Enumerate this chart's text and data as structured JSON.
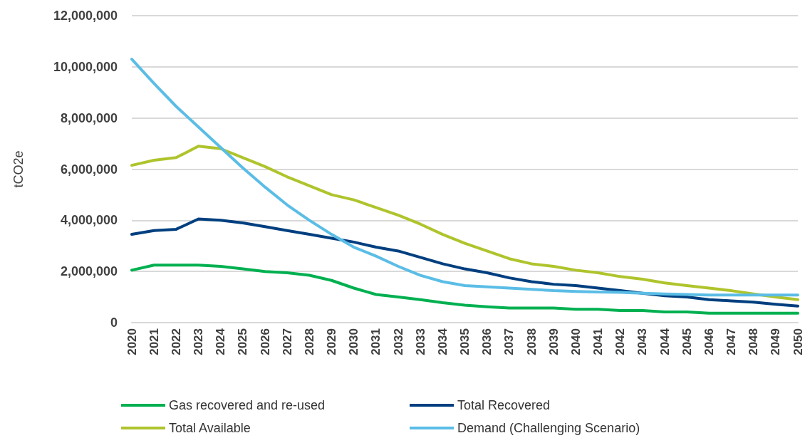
{
  "chart_data": {
    "type": "line",
    "ylabel": "tCO2e",
    "x": [
      2020,
      2021,
      2022,
      2023,
      2024,
      2025,
      2026,
      2027,
      2028,
      2029,
      2030,
      2031,
      2032,
      2033,
      2034,
      2035,
      2036,
      2037,
      2038,
      2039,
      2040,
      2041,
      2042,
      2043,
      2044,
      2045,
      2046,
      2047,
      2048,
      2049,
      2050
    ],
    "xlim": [
      2020,
      2050
    ],
    "xticks": [
      2020,
      2021,
      2022,
      2023,
      2024,
      2025,
      2026,
      2027,
      2028,
      2029,
      2030,
      2031,
      2032,
      2033,
      2034,
      2035,
      2036,
      2037,
      2038,
      2039,
      2040,
      2041,
      2042,
      2043,
      2044,
      2045,
      2046,
      2047,
      2048,
      2049,
      2050
    ],
    "ylim": [
      0,
      12000000
    ],
    "yticks": [
      {
        "value": 0,
        "label": "0"
      },
      {
        "value": 2000000,
        "label": "2,000,000"
      },
      {
        "value": 4000000,
        "label": "4,000,000"
      },
      {
        "value": 6000000,
        "label": "6,000,000"
      },
      {
        "value": 8000000,
        "label": "8,000,000"
      },
      {
        "value": 10000000,
        "label": "10,000,000"
      },
      {
        "value": 12000000,
        "label": "12,000,000"
      }
    ],
    "grid": "y",
    "legend": "bottom",
    "marker": "none",
    "line_style": "solid",
    "series": [
      {
        "name": "Gas recovered and re-used",
        "color": "#00b050",
        "values": [
          2050000,
          2250000,
          2250000,
          2250000,
          2200000,
          2100000,
          2000000,
          1950000,
          1850000,
          1650000,
          1350000,
          1100000,
          1000000,
          900000,
          780000,
          680000,
          620000,
          570000,
          570000,
          570000,
          520000,
          520000,
          470000,
          470000,
          420000,
          420000,
          370000,
          370000,
          370000,
          370000,
          370000
        ]
      },
      {
        "name": "Total Recovered",
        "color": "#003f7f",
        "values": [
          3450000,
          3600000,
          3650000,
          4050000,
          4000000,
          3900000,
          3750000,
          3600000,
          3450000,
          3300000,
          3150000,
          2950000,
          2800000,
          2550000,
          2300000,
          2100000,
          1950000,
          1750000,
          1600000,
          1500000,
          1450000,
          1350000,
          1250000,
          1150000,
          1050000,
          1000000,
          900000,
          850000,
          800000,
          720000,
          650000
        ]
      },
      {
        "name": "Total Available",
        "color": "#afc42c",
        "values": [
          6150000,
          6350000,
          6450000,
          6900000,
          6800000,
          6450000,
          6100000,
          5700000,
          5350000,
          5000000,
          4800000,
          4500000,
          4200000,
          3850000,
          3450000,
          3100000,
          2800000,
          2500000,
          2300000,
          2200000,
          2050000,
          1950000,
          1800000,
          1700000,
          1550000,
          1450000,
          1350000,
          1250000,
          1120000,
          1000000,
          900000
        ]
      },
      {
        "name": "Demand (Challenging Scenario)",
        "color": "#5bbde6",
        "values": [
          10300000,
          9350000,
          8450000,
          7650000,
          6850000,
          6050000,
          5300000,
          4600000,
          4000000,
          3450000,
          2950000,
          2600000,
          2200000,
          1850000,
          1600000,
          1450000,
          1400000,
          1350000,
          1300000,
          1250000,
          1220000,
          1200000,
          1180000,
          1150000,
          1120000,
          1100000,
          1080000,
          1080000,
          1080000,
          1080000,
          1080000
        ]
      }
    ]
  }
}
